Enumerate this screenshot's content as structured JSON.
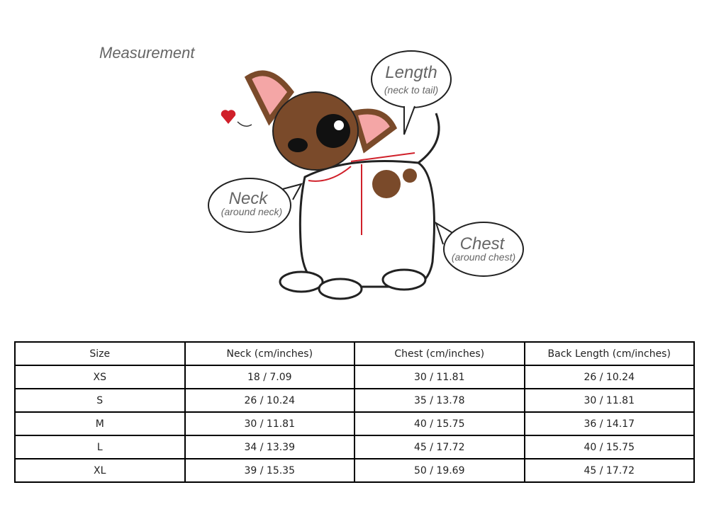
{
  "illustration": {
    "title": "Measurement",
    "length": {
      "label": "Length",
      "sub": "(neck to tail)"
    },
    "neck": {
      "label": "Neck",
      "sub": "(around neck)"
    },
    "chest": {
      "label": "Chest",
      "sub": "(around chest)"
    },
    "colors": {
      "fur_brown": "#7a4a2a",
      "ear_pink": "#f4a6a6",
      "measure_line": "#d0202a",
      "heart": "#d0202a"
    }
  },
  "table": {
    "headers": [
      "Size",
      "Neck (cm/inches)",
      "Chest (cm/inches)",
      "Back Length (cm/inches)"
    ],
    "rows": [
      [
        "XS",
        "18 / 7.09",
        "30 / 11.81",
        "26 / 10.24"
      ],
      [
        "S",
        "26 / 10.24",
        "35 / 13.78",
        "30 / 11.81"
      ],
      [
        "M",
        "30 / 11.81",
        "40 / 15.75",
        "36 / 14.17"
      ],
      [
        "L",
        "34 / 13.39",
        "45 / 17.72",
        "40 / 15.75"
      ],
      [
        "XL",
        "39 / 15.35",
        "50 / 19.69",
        "45 / 17.72"
      ]
    ]
  }
}
